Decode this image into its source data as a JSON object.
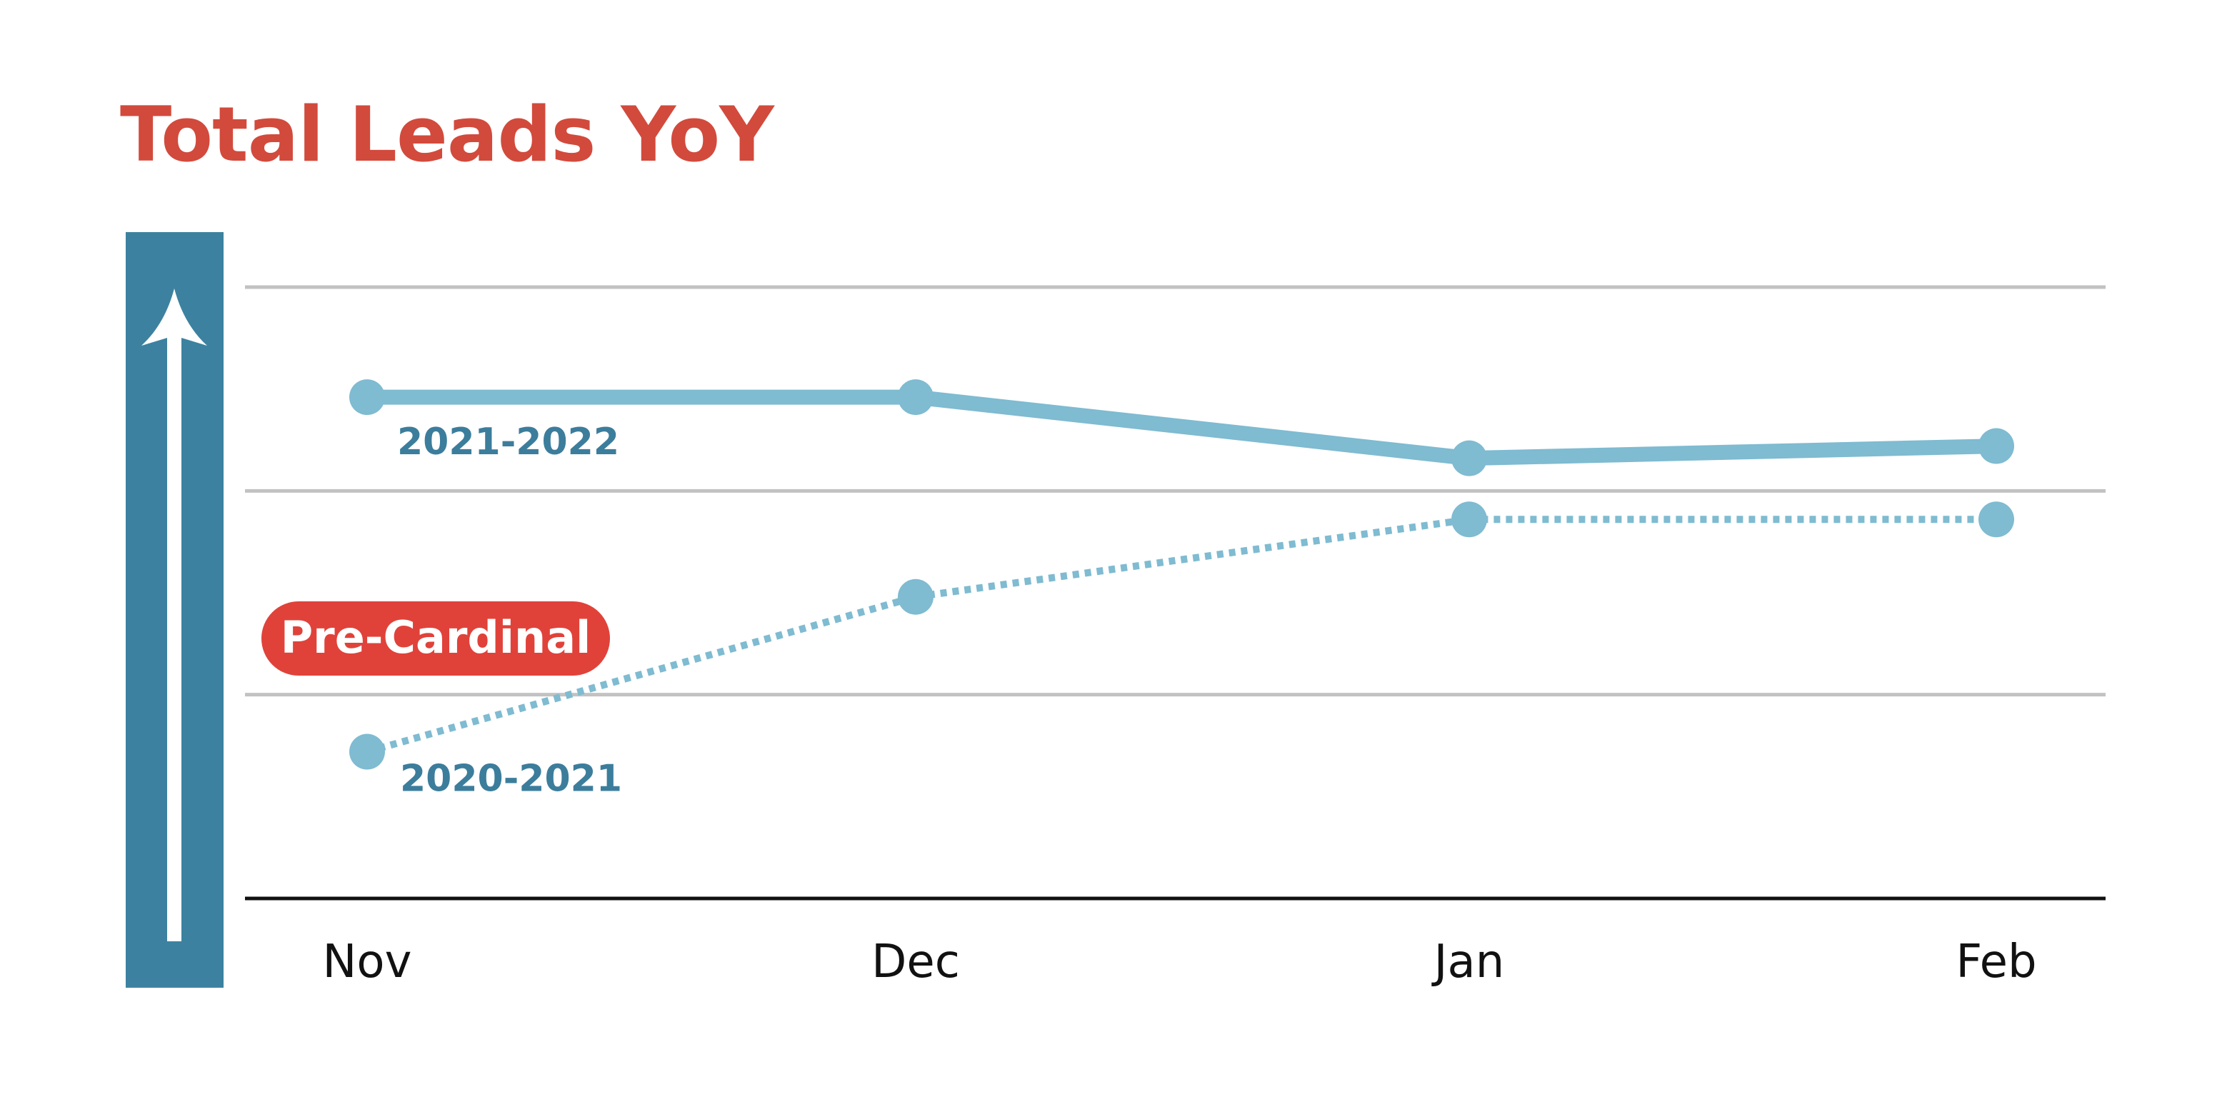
{
  "colors": {
    "title": "#d24a3c",
    "axis_bar": "#3c82a0",
    "series_line": "#7fbbd1",
    "series_label": "#3c7d9c",
    "badge": "#e0423a",
    "grid": "#c2c2c2",
    "baseline": "#111111"
  },
  "chart_data": {
    "type": "line",
    "title": "Total Leads YoY",
    "categories": [
      "Nov",
      "Dec",
      "Jan",
      "Feb"
    ],
    "ylim": [
      0,
      1.5
    ],
    "grid": true,
    "y_ticks_shown": false,
    "series": [
      {
        "name": "2021-2022",
        "style": "solid",
        "values": [
          1.23,
          1.23,
          1.08,
          1.11
        ]
      },
      {
        "name": "2020-2021",
        "style": "dotted",
        "values": [
          0.36,
          0.74,
          0.93,
          0.93
        ]
      }
    ],
    "annotations": [
      {
        "text": "Pre-Cardinal",
        "style": "badge"
      }
    ],
    "axis_icon": "up-arrow-icon"
  }
}
